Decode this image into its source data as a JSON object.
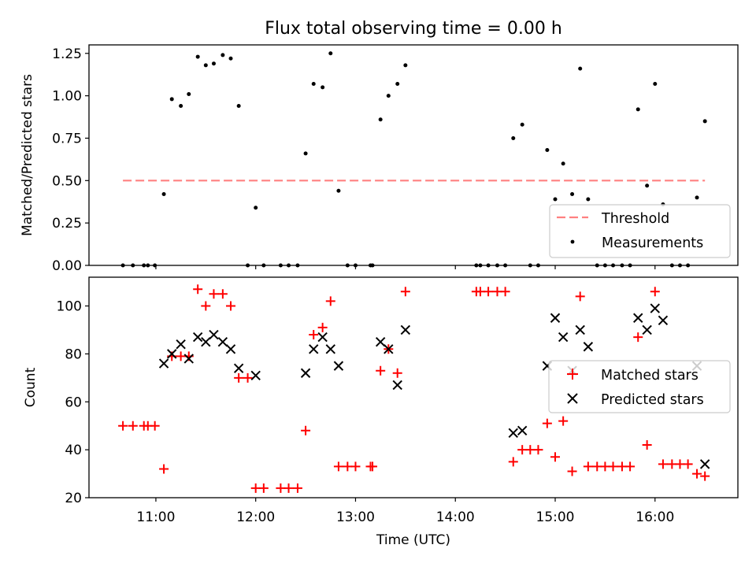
{
  "chart_data": [
    {
      "type": "scatter",
      "title": "Flux total observing time = 0.00 h",
      "xlabel": "",
      "ylabel": "Matched/Predicted stars",
      "xlim": [
        10.33,
        16.83
      ],
      "ylim": [
        0,
        1.3
      ],
      "xticks": [
        11,
        12,
        13,
        14,
        15,
        16
      ],
      "yticks": [
        0,
        0.25,
        0.5,
        0.75,
        1.0,
        1.25
      ],
      "ytick_labels": [
        "0.00",
        "0.25",
        "0.50",
        "0.75",
        "1.00",
        "1.25"
      ],
      "threshold": {
        "name": "Threshold",
        "value": 0.5,
        "x": [
          10.67,
          16.5
        ],
        "color": "#ff8080"
      },
      "legend": {
        "placement": "lower-right",
        "entries": [
          "Threshold",
          "Measurements"
        ]
      },
      "series": [
        {
          "name": "Measurements",
          "color": "#000000",
          "x": [
            10.67,
            10.77,
            10.88,
            10.92,
            10.99,
            11.08,
            11.16,
            11.25,
            11.33,
            11.42,
            11.5,
            11.58,
            11.67,
            11.75,
            11.83,
            11.92,
            12.0,
            12.08,
            12.25,
            12.33,
            12.42,
            12.5,
            12.58,
            12.67,
            12.75,
            12.83,
            12.92,
            13.0,
            13.15,
            13.17,
            13.25,
            13.33,
            13.42,
            13.5,
            14.21,
            14.25,
            14.33,
            14.42,
            14.5,
            14.58,
            14.67,
            14.75,
            14.83,
            14.92,
            15.0,
            15.08,
            15.17,
            15.25,
            15.33,
            15.42,
            15.5,
            15.58,
            15.67,
            15.75,
            15.83,
            15.92,
            16.0,
            16.08,
            16.17,
            16.25,
            16.33,
            16.42,
            16.5
          ],
          "y": [
            0,
            0,
            0,
            0,
            0,
            0.42,
            0.98,
            0.94,
            1.01,
            1.23,
            1.18,
            1.19,
            1.24,
            1.22,
            0.94,
            0,
            0.34,
            0,
            0,
            0,
            0,
            0.66,
            1.07,
            1.05,
            1.25,
            0.44,
            0,
            0,
            0,
            0,
            0.86,
            1.0,
            1.07,
            1.18,
            0,
            0,
            0,
            0,
            0,
            0.75,
            0.83,
            0,
            0,
            0.68,
            0.39,
            0.6,
            0.42,
            1.16,
            0.39,
            0,
            0,
            0,
            0,
            0,
            0.92,
            0.47,
            1.07,
            0.36,
            0,
            0,
            0,
            0.4,
            0.85
          ]
        }
      ]
    },
    {
      "type": "scatter",
      "title": "",
      "xlabel": "Time (UTC)",
      "ylabel": "Count",
      "xlim": [
        10.33,
        16.83
      ],
      "ylim": [
        20,
        112
      ],
      "xticks": [
        11,
        12,
        13,
        14,
        15,
        16
      ],
      "xtick_labels": [
        "11:00",
        "12:00",
        "13:00",
        "14:00",
        "15:00",
        "16:00"
      ],
      "yticks": [
        20,
        40,
        60,
        80,
        100
      ],
      "legend": {
        "placement": "center-right",
        "entries": [
          "Matched stars",
          "Predicted stars"
        ]
      },
      "series": [
        {
          "name": "Matched stars",
          "marker": "+",
          "color": "#ff0000",
          "x": [
            10.67,
            10.77,
            10.88,
            10.92,
            10.99,
            11.08,
            11.16,
            11.25,
            11.33,
            11.42,
            11.5,
            11.58,
            11.67,
            11.75,
            11.83,
            11.92,
            12.0,
            12.08,
            12.25,
            12.33,
            12.42,
            12.5,
            12.58,
            12.67,
            12.75,
            12.83,
            12.92,
            13.0,
            13.15,
            13.17,
            13.25,
            13.33,
            13.42,
            13.5,
            14.21,
            14.25,
            14.33,
            14.42,
            14.5,
            14.58,
            14.67,
            14.75,
            14.83,
            14.92,
            15.0,
            15.08,
            15.17,
            15.25,
            15.33,
            15.42,
            15.5,
            15.58,
            15.67,
            15.75,
            15.83,
            15.92,
            16.0,
            16.08,
            16.17,
            16.25,
            16.33,
            16.42,
            16.5
          ],
          "y": [
            50,
            50,
            50,
            50,
            50,
            32,
            79,
            79,
            79,
            107,
            100,
            105,
            105,
            100,
            70,
            70,
            24,
            24,
            24,
            24,
            24,
            48,
            88,
            91,
            102,
            33,
            33,
            33,
            33,
            33,
            73,
            82,
            72,
            106,
            106,
            106,
            106,
            106,
            106,
            35,
            40,
            40,
            40,
            51,
            37,
            52,
            31,
            104,
            33,
            33,
            33,
            33,
            33,
            33,
            87,
            42,
            106,
            34,
            34,
            34,
            34,
            30,
            29
          ]
        },
        {
          "name": "Predicted stars",
          "marker": "x",
          "color": "#000000",
          "x": [
            11.08,
            11.16,
            11.25,
            11.33,
            11.42,
            11.5,
            11.58,
            11.67,
            11.75,
            11.83,
            12.0,
            12.5,
            12.58,
            12.67,
            12.75,
            12.83,
            13.25,
            13.33,
            13.42,
            13.5,
            14.58,
            14.67,
            14.92,
            15.0,
            15.08,
            15.17,
            15.25,
            15.33,
            15.83,
            15.92,
            16.0,
            16.08,
            16.42,
            16.5
          ],
          "y": [
            76,
            80,
            84,
            78,
            87,
            85,
            88,
            85,
            82,
            74,
            71,
            72,
            82,
            87,
            82,
            75,
            85,
            82,
            67,
            90,
            47,
            48,
            75,
            95,
            87,
            73,
            90,
            83,
            95,
            90,
            99,
            94,
            75,
            34
          ]
        }
      ]
    }
  ]
}
